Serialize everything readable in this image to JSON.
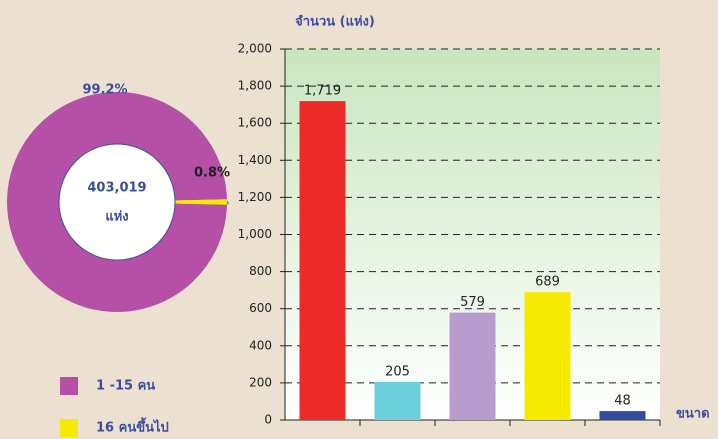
{
  "chart_data": [
    {
      "type": "pie",
      "categories": [
        "1 -15 คน",
        "16 คนขึ้นไป"
      ],
      "values": [
        99.2,
        0.8
      ],
      "value_labels": [
        "99.2%",
        "0.8%"
      ],
      "colors": [
        "#b64fa6",
        "#f5ea00"
      ],
      "center_text": [
        "403,019",
        "แห่ง"
      ],
      "legend": "bottom-left"
    },
    {
      "type": "bar",
      "ylabel": "จำนวน (แห่ง)",
      "xlabel": "ขนาด",
      "categories": [
        null,
        null,
        null,
        null,
        null
      ],
      "values": [
        1719,
        205,
        579,
        689,
        48
      ],
      "value_labels": [
        "1,719",
        "205",
        "579",
        "689",
        "48"
      ],
      "colors": [
        "#ec2a27",
        "#6dcedc",
        "#b99cce",
        "#f5ea00",
        "#2f4d9e"
      ],
      "ylim": [
        0,
        2000
      ],
      "yticks": [
        0,
        200,
        400,
        600,
        800,
        {
          "value": 1000,
          "label": "1,000"
        },
        {
          "value": 1200,
          "label": "1,200"
        },
        {
          "value": 1400,
          "label": "1,400"
        },
        {
          "value": 1600,
          "label": "1,600"
        },
        {
          "value": 1800,
          "label": "1,800"
        },
        {
          "value": 2000,
          "label": "2,000"
        }
      ],
      "grid": true
    }
  ]
}
